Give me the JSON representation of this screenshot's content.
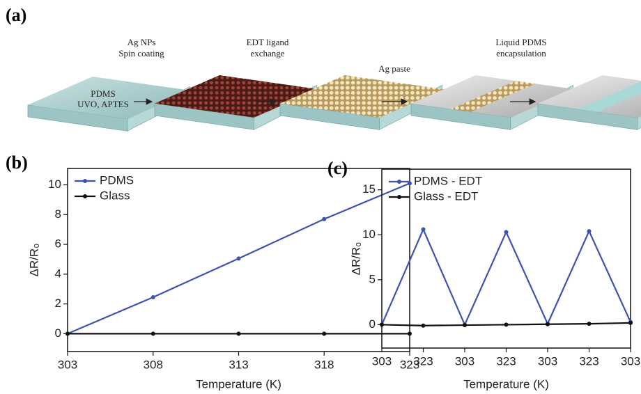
{
  "schematic": {
    "panel_label": "(a)",
    "substrate_label": [
      "PDMS",
      "UVO, APTES"
    ],
    "steps": [
      [
        "Ag NPs",
        "Spin coating"
      ],
      [
        "EDT ligand",
        "exchange"
      ],
      [
        "Ag paste"
      ],
      [
        "Liquid PDMS",
        "encapsulation"
      ]
    ]
  },
  "chart_data": [
    {
      "type": "line",
      "panel_label": "(b)",
      "x_label": "Temperature (K)",
      "y_label": "ΔR/R₀",
      "x": [
        303,
        308,
        313,
        318,
        323
      ],
      "series": [
        {
          "name": "PDMS",
          "color": "#3f51b0",
          "values": [
            0,
            2.45,
            5.05,
            7.7,
            10.1
          ]
        },
        {
          "name": "Glass",
          "color": "#111111",
          "values": [
            0,
            0,
            0,
            0,
            0
          ]
        }
      ],
      "xlim": [
        303,
        323
      ],
      "xticks": [
        303,
        308,
        313,
        318,
        323
      ],
      "ylim": [
        -1.2,
        11.1
      ],
      "yticks": [
        0,
        2,
        4,
        6,
        8,
        10
      ],
      "legend": "upper left"
    },
    {
      "type": "line",
      "panel_label": "(c)",
      "x_label": "Temperature (K)",
      "y_label": "ΔR/R₀",
      "categories": [
        "303",
        "323",
        "303",
        "323",
        "303",
        "323",
        "303"
      ],
      "series": [
        {
          "name": "PDMS - EDT",
          "color": "#3f51b0",
          "values": [
            0,
            10.6,
            0,
            10.3,
            0.1,
            10.4,
            0.3
          ]
        },
        {
          "name": "Glass  - EDT",
          "color": "#111111",
          "values": [
            0,
            -0.1,
            -0.05,
            0,
            0.05,
            0.1,
            0.2
          ]
        }
      ],
      "ylim": [
        -2.6,
        17.3
      ],
      "yticks": [
        0,
        5,
        10,
        15
      ],
      "legend": "upper left"
    }
  ]
}
